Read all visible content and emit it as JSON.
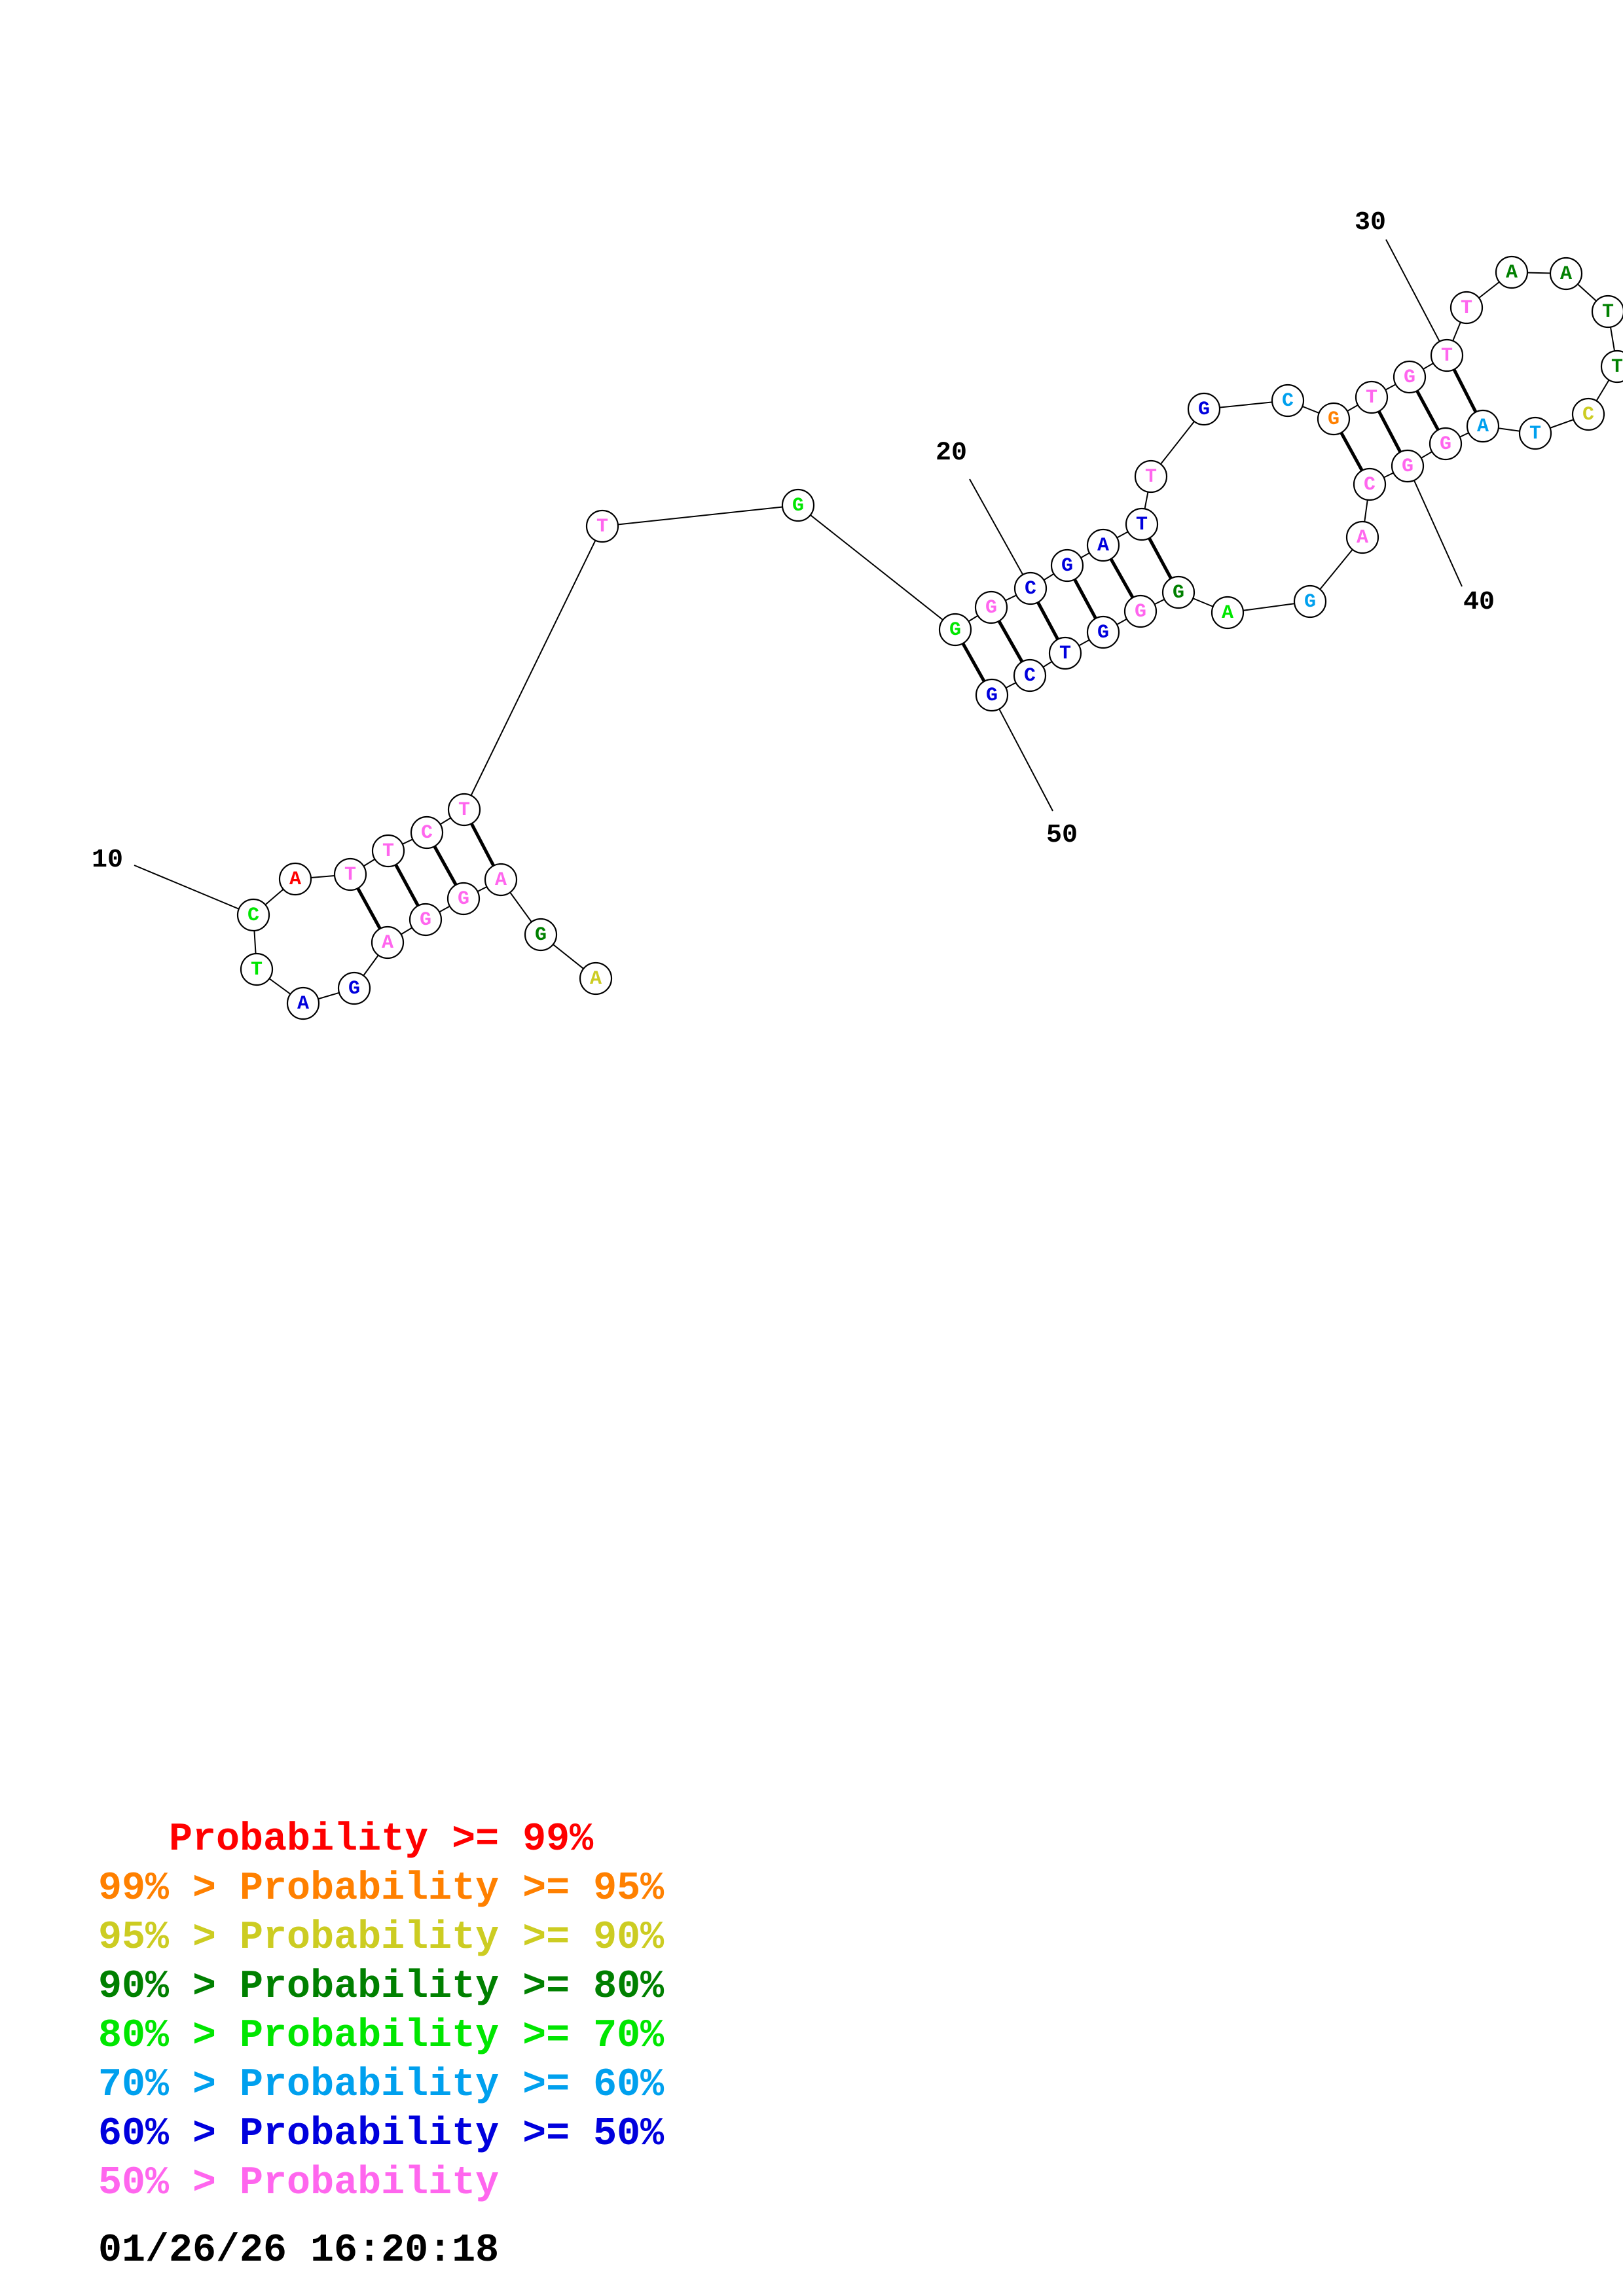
{
  "colors": {
    "p99": "#ff0000",
    "p95": "#ff8000",
    "p90": "#cccc22",
    "p80": "#008000",
    "p70": "#00e600",
    "p60": "#00a0ee",
    "p50": "#0000dd",
    "plt50": "#ff66ee"
  },
  "nucleotides": [
    {
      "base": "T",
      "color": "plt50"
    },
    {
      "base": "C",
      "color": "plt50"
    },
    {
      "base": "T",
      "color": "plt50"
    },
    {
      "base": "T",
      "color": "plt50"
    },
    {
      "base": "A",
      "color": "p99"
    },
    {
      "base": "C",
      "color": "p70"
    },
    {
      "base": "T",
      "color": "p70"
    },
    {
      "base": "A",
      "color": "p50"
    },
    {
      "base": "G",
      "color": "p50"
    },
    {
      "base": "A",
      "color": "plt50"
    },
    {
      "base": "G",
      "color": "plt50"
    },
    {
      "base": "G",
      "color": "plt50"
    },
    {
      "base": "A",
      "color": "plt50"
    },
    {
      "base": "G",
      "color": "p80"
    },
    {
      "base": "A",
      "color": "p90"
    },
    {
      "base": "T",
      "color": "plt50"
    },
    {
      "base": "G",
      "color": "p70"
    },
    {
      "base": "G",
      "color": "p70"
    },
    {
      "base": "G",
      "color": "plt50"
    },
    {
      "base": "C",
      "color": "p50"
    },
    {
      "base": "G",
      "color": "p50"
    },
    {
      "base": "A",
      "color": "p50"
    },
    {
      "base": "T",
      "color": "p50"
    },
    {
      "base": "T",
      "color": "plt50"
    },
    {
      "base": "G",
      "color": "p50"
    },
    {
      "base": "C",
      "color": "p60"
    },
    {
      "base": "G",
      "color": "p95"
    },
    {
      "base": "T",
      "color": "plt50"
    },
    {
      "base": "G",
      "color": "plt50"
    },
    {
      "base": "T",
      "color": "plt50"
    },
    {
      "base": "T",
      "color": "plt50"
    },
    {
      "base": "A",
      "color": "p80"
    },
    {
      "base": "A",
      "color": "p80"
    },
    {
      "base": "T",
      "color": "p80"
    },
    {
      "base": "T",
      "color": "p80"
    },
    {
      "base": "C",
      "color": "p90"
    },
    {
      "base": "T",
      "color": "p60"
    },
    {
      "base": "A",
      "color": "p60"
    },
    {
      "base": "G",
      "color": "plt50"
    },
    {
      "base": "G",
      "color": "plt50"
    },
    {
      "base": "C",
      "color": "plt50"
    },
    {
      "base": "A",
      "color": "plt50"
    },
    {
      "base": "G",
      "color": "p60"
    },
    {
      "base": "A",
      "color": "p70"
    },
    {
      "base": "G",
      "color": "p80"
    },
    {
      "base": "G",
      "color": "plt50"
    },
    {
      "base": "G",
      "color": "p50"
    },
    {
      "base": "T",
      "color": "p50"
    },
    {
      "base": "C",
      "color": "p50"
    },
    {
      "base": "G",
      "color": "p50"
    },
    {
      "base": "T",
      "color": "plt50"
    }
  ],
  "base_pairs": [
    [
      1,
      13
    ],
    [
      2,
      12
    ],
    [
      3,
      11
    ],
    [
      4,
      10
    ],
    [
      19,
      51
    ],
    [
      20,
      50
    ],
    [
      21,
      49
    ],
    [
      22,
      48
    ],
    [
      23,
      47
    ],
    [
      24,
      46
    ],
    [
      28,
      42
    ],
    [
      29,
      41
    ],
    [
      30,
      40
    ],
    [
      31,
      39
    ]
  ],
  "position_labels": [
    "10",
    "20",
    "30",
    "40",
    "50"
  ],
  "legend": [
    {
      "prefix": "   ",
      "text": "Probability >= 99%",
      "color": "p99"
    },
    {
      "prefix": "99% > ",
      "text": "Probability >= 95%",
      "color": "p95"
    },
    {
      "prefix": "95% > ",
      "text": "Probability >= 90%",
      "color": "p90"
    },
    {
      "prefix": "90% > ",
      "text": "Probability >= 80%",
      "color": "p80"
    },
    {
      "prefix": "80% > ",
      "text": "Probability >= 70%",
      "color": "p70"
    },
    {
      "prefix": "70% > ",
      "text": "Probability >= 60%",
      "color": "p60"
    },
    {
      "prefix": "60% > ",
      "text": "Probability >= 50%",
      "color": "p50"
    },
    {
      "prefix": "50% > ",
      "text": "Probability",
      "color": "plt50"
    }
  ],
  "timestamp": "01/26/26 16:20:18"
}
